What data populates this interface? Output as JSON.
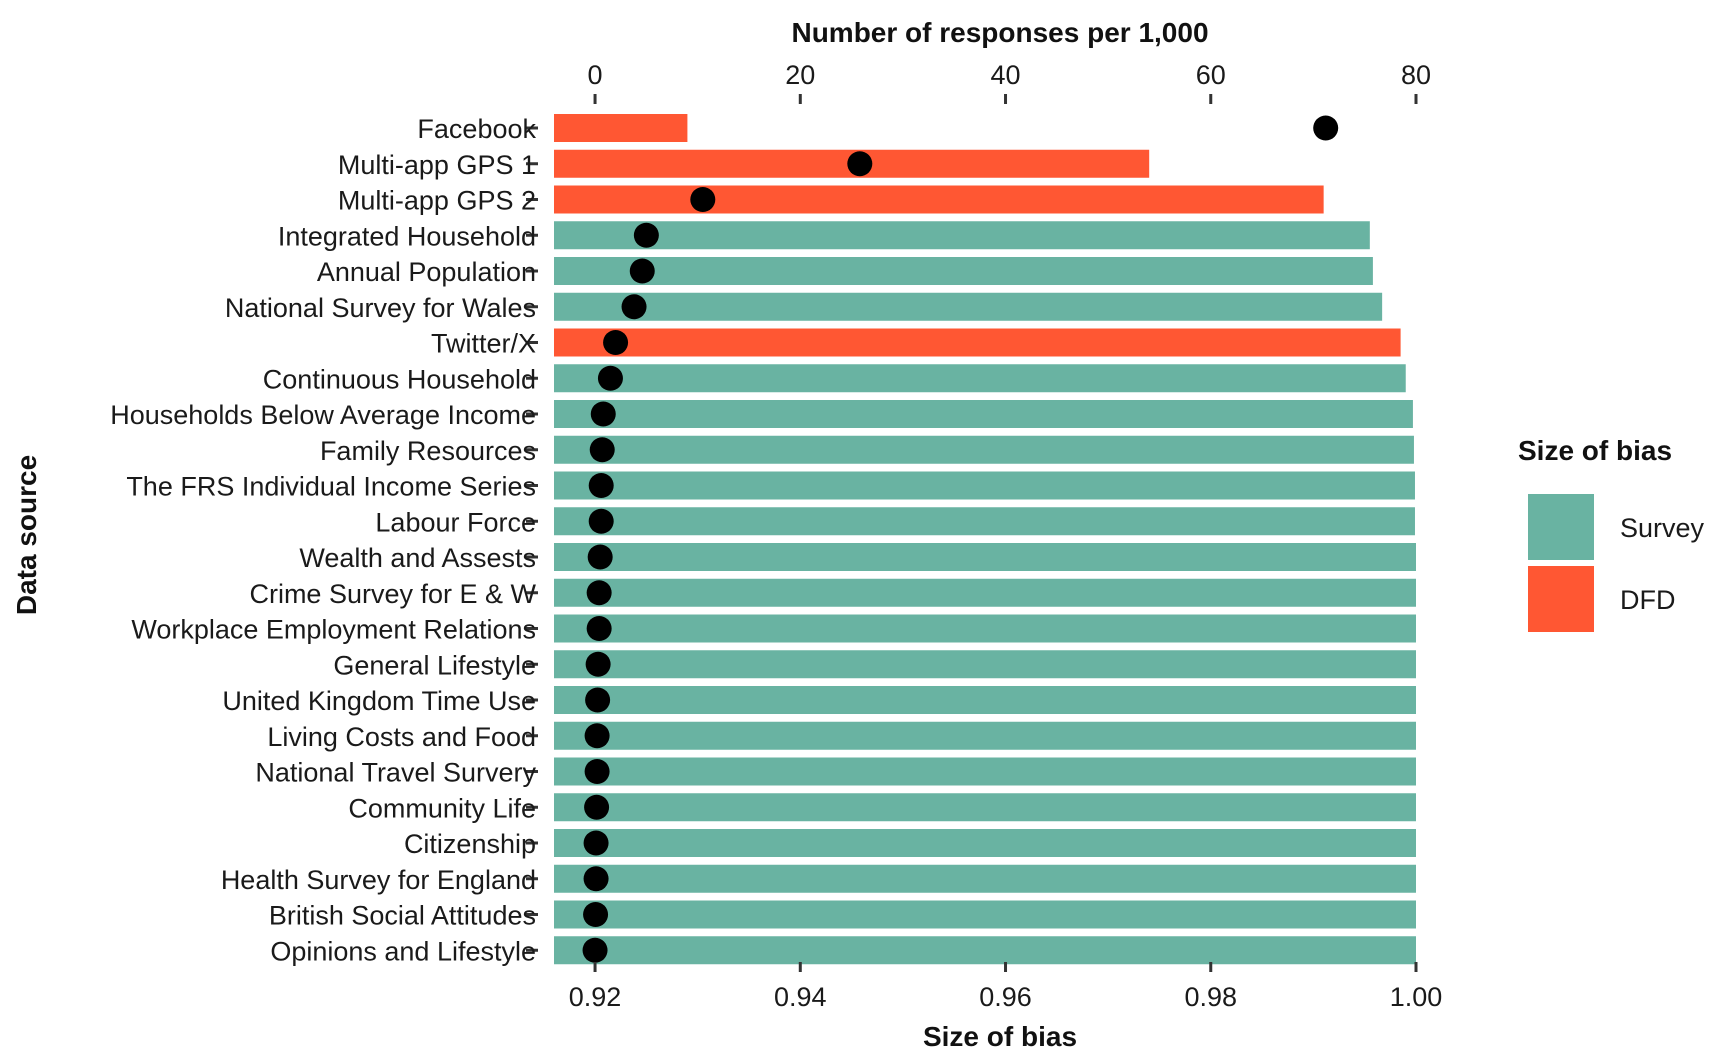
{
  "chart_data": {
    "type": "bar",
    "orientation": "horizontal",
    "x_bottom": {
      "label": "Size of bias",
      "range": [
        0.916,
        1.0
      ],
      "ticks": [
        "0.92",
        "0.94",
        "0.96",
        "0.98",
        "1.00"
      ]
    },
    "x_top": {
      "label": "Number of responses per 1,000",
      "range": [
        -4,
        80
      ],
      "ticks": [
        "0",
        "20",
        "40",
        "60",
        "80"
      ]
    },
    "ylabel": "Data source",
    "legend": {
      "title": "Size of bias",
      "placement": "right",
      "items": [
        {
          "name": "Survey",
          "color": "#69B3A2"
        },
        {
          "name": "DFD",
          "color": "#FF5733"
        }
      ]
    },
    "colors": {
      "Survey": "#69B3A2",
      "DFD": "#FF5733",
      "point": "#000000"
    },
    "categories": [
      "Facebook",
      "Multi-app GPS 1",
      "Multi-app GPS 2",
      "Integrated Household",
      "Annual Population",
      "National Survey for Wales",
      "Twitter/X",
      "Continuous Household",
      "Households Below Average Income",
      "Family Resources",
      "The FRS Individual Income Series",
      "Labour Force",
      "Wealth and Assests",
      "Crime Survey for E & W",
      "Workplace Employment Relations",
      "General Lifestyle",
      "United Kingdom Time Use",
      "Living Costs and Food",
      "National Travel Survery",
      "Community Life",
      "Citizenship",
      "Health Survey for England",
      "British Social Attitudes",
      "Opinions and Lifestyle"
    ],
    "groups": [
      "DFD",
      "DFD",
      "DFD",
      "Survey",
      "Survey",
      "Survey",
      "DFD",
      "Survey",
      "Survey",
      "Survey",
      "Survey",
      "Survey",
      "Survey",
      "Survey",
      "Survey",
      "Survey",
      "Survey",
      "Survey",
      "Survey",
      "Survey",
      "Survey",
      "Survey",
      "Survey",
      "Survey"
    ],
    "bias": [
      0.929,
      0.974,
      0.991,
      0.9955,
      0.9958,
      0.9967,
      0.9985,
      0.999,
      0.9997,
      0.9998,
      0.9999,
      0.9999,
      1.0,
      1.0,
      1.0,
      1.0,
      1.0,
      1.0,
      1.0,
      1.0,
      1.0,
      1.0,
      1.0,
      1.0
    ],
    "responses_per_1000": [
      71.2,
      25.8,
      10.5,
      5.0,
      4.6,
      3.8,
      2.0,
      1.5,
      0.8,
      0.7,
      0.6,
      0.6,
      0.5,
      0.4,
      0.4,
      0.3,
      0.25,
      0.2,
      0.2,
      0.15,
      0.1,
      0.1,
      0.05,
      0.0
    ]
  }
}
